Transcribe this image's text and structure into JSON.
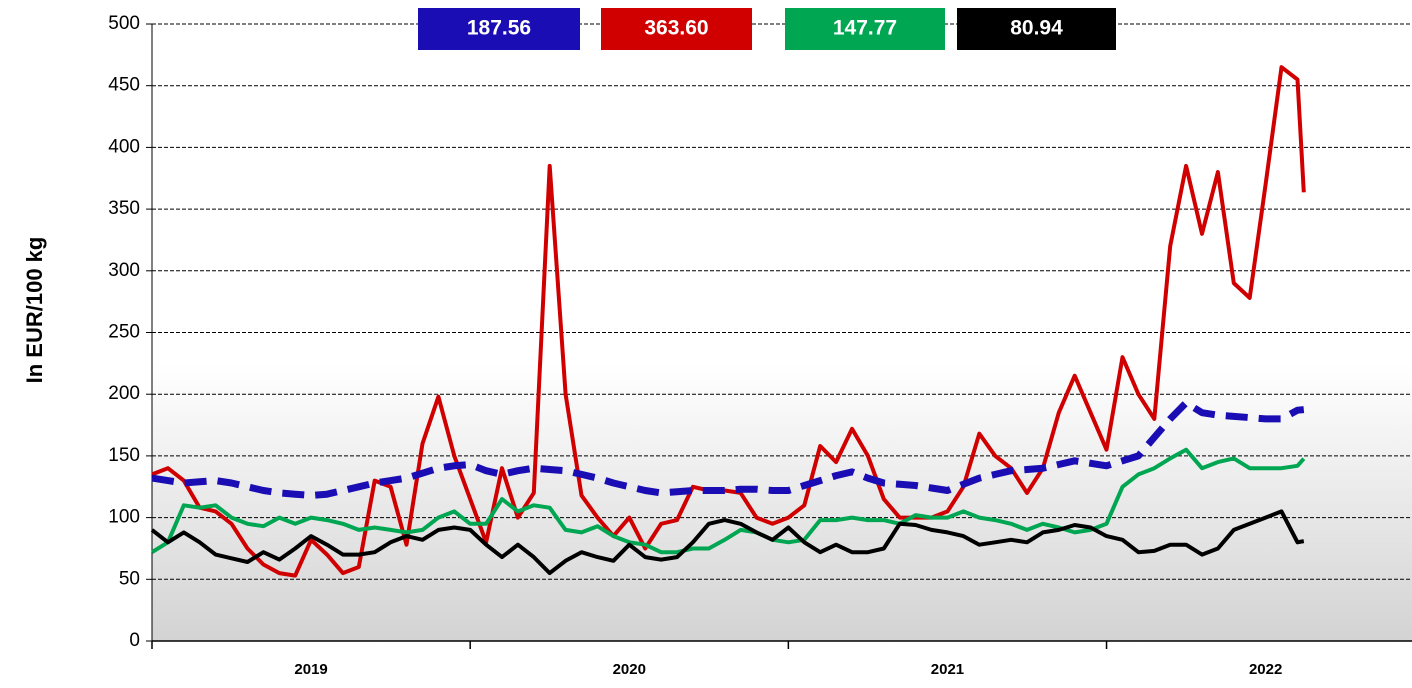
{
  "chart_data": {
    "type": "line",
    "y_label": "In EUR/100 kg",
    "xlim": [
      2019,
      2022.96
    ],
    "xticks": [
      {
        "value": 2019.5,
        "label": "2019"
      },
      {
        "value": 2020.5,
        "label": "2020"
      },
      {
        "value": 2021.5,
        "label": "2021"
      },
      {
        "value": 2022.5,
        "label": "2022"
      }
    ],
    "ylim": [
      0,
      500
    ],
    "yticks": [
      0,
      50,
      100,
      150,
      200,
      250,
      300,
      350,
      400,
      450,
      500
    ],
    "grid": true,
    "x": [
      2019.0,
      2019.05,
      2019.1,
      2019.15,
      2019.2,
      2019.25,
      2019.3,
      2019.35,
      2019.4,
      2019.45,
      2019.5,
      2019.55,
      2019.6,
      2019.65,
      2019.7,
      2019.75,
      2019.8,
      2019.85,
      2019.9,
      2019.95,
      2020.0,
      2020.05,
      2020.1,
      2020.15,
      2020.2,
      2020.25,
      2020.3,
      2020.35,
      2020.4,
      2020.45,
      2020.5,
      2020.55,
      2020.6,
      2020.65,
      2020.7,
      2020.75,
      2020.8,
      2020.85,
      2020.9,
      2020.95,
      2021.0,
      2021.05,
      2021.1,
      2021.15,
      2021.2,
      2021.25,
      2021.3,
      2021.35,
      2021.4,
      2021.45,
      2021.5,
      2021.55,
      2021.6,
      2021.65,
      2021.7,
      2021.75,
      2021.8,
      2021.85,
      2021.9,
      2021.95,
      2022.0,
      2022.05,
      2022.1,
      2022.15,
      2022.2,
      2022.25,
      2022.3,
      2022.35,
      2022.4,
      2022.45,
      2022.5,
      2022.55,
      2022.6,
      2022.62
    ],
    "series": [
      {
        "name": "187.56",
        "color": "#1a0db4",
        "dashed": true,
        "values": [
          132,
          130,
          128,
          129,
          130,
          128,
          125,
          122,
          120,
          119,
          118,
          119,
          122,
          125,
          128,
          130,
          132,
          136,
          140,
          142,
          143,
          138,
          135,
          138,
          140,
          139,
          138,
          135,
          132,
          128,
          125,
          122,
          120,
          121,
          122,
          122,
          122,
          123,
          123,
          122,
          122,
          126,
          130,
          134,
          137,
          132,
          128,
          127,
          126,
          124,
          122,
          127,
          132,
          135,
          138,
          139,
          140,
          143,
          146,
          144,
          142,
          146,
          150,
          165,
          180,
          193,
          185,
          183,
          182,
          181,
          180,
          180,
          187,
          187.56
        ]
      },
      {
        "name": "363.60",
        "color": "#d00000",
        "values": [
          135,
          140,
          130,
          108,
          105,
          95,
          75,
          62,
          55,
          53,
          82,
          70,
          55,
          60,
          130,
          125,
          78,
          160,
          198,
          150,
          115,
          80,
          140,
          100,
          120,
          385,
          200,
          118,
          100,
          85,
          100,
          75,
          95,
          98,
          125,
          122,
          122,
          120,
          100,
          95,
          100,
          110,
          158,
          145,
          172,
          150,
          115,
          100,
          100,
          100,
          105,
          125,
          168,
          150,
          140,
          120,
          140,
          185,
          215,
          185,
          155,
          230,
          200,
          180,
          320,
          385,
          330,
          380,
          290,
          278,
          370,
          465,
          455,
          363.6
        ]
      },
      {
        "name": "147.77",
        "color": "#00a651",
        "values": [
          72,
          80,
          110,
          108,
          110,
          100,
          95,
          93,
          100,
          95,
          100,
          98,
          95,
          90,
          92,
          90,
          88,
          90,
          100,
          105,
          95,
          95,
          115,
          105,
          110,
          108,
          90,
          88,
          93,
          85,
          80,
          78,
          72,
          72,
          75,
          75,
          82,
          90,
          88,
          82,
          80,
          82,
          98,
          98,
          100,
          98,
          98,
          95,
          102,
          100,
          100,
          105,
          100,
          98,
          95,
          90,
          95,
          92,
          88,
          90,
          95,
          125,
          135,
          140,
          148,
          155,
          140,
          145,
          148,
          140,
          140,
          140,
          142,
          147.77
        ]
      },
      {
        "name": "80.94",
        "color": "#000000",
        "values": [
          90,
          80,
          88,
          80,
          70,
          67,
          64,
          72,
          66,
          75,
          85,
          78,
          70,
          70,
          72,
          80,
          85,
          82,
          90,
          92,
          90,
          78,
          68,
          78,
          68,
          55,
          65,
          72,
          68,
          65,
          78,
          68,
          66,
          68,
          80,
          95,
          98,
          95,
          88,
          82,
          92,
          80,
          72,
          78,
          72,
          72,
          75,
          95,
          94,
          90,
          88,
          85,
          78,
          80,
          82,
          80,
          88,
          90,
          94,
          92,
          85,
          82,
          72,
          73,
          78,
          78,
          70,
          75,
          90,
          95,
          100,
          105,
          80,
          80.94
        ]
      }
    ]
  }
}
